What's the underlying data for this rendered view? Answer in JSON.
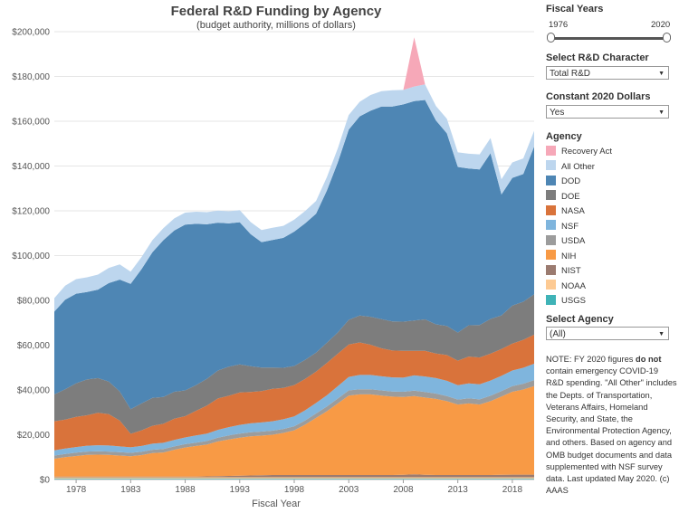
{
  "chart_data": {
    "type": "area",
    "stacked": true,
    "title": "Federal R&D Funding by Agency",
    "subtitle": "(budget authority, millions of dollars)",
    "xlabel": "Fiscal Year",
    "ylabel": "",
    "xlim": [
      1976,
      2020
    ],
    "ylim": [
      0,
      200000
    ],
    "y_ticks": [
      "$0",
      "$20,000",
      "$40,000",
      "$60,000",
      "$80,000",
      "$100,000",
      "$120,000",
      "$140,000",
      "$160,000",
      "$180,000",
      "$200,000"
    ],
    "x_ticks": [
      "1978",
      "1983",
      "1988",
      "1993",
      "1998",
      "2003",
      "2008",
      "2013",
      "2018"
    ],
    "grid": true,
    "years": [
      1976,
      1977,
      1978,
      1979,
      1980,
      1981,
      1982,
      1983,
      1984,
      1985,
      1986,
      1987,
      1988,
      1989,
      1990,
      1991,
      1992,
      1993,
      1994,
      1995,
      1996,
      1997,
      1998,
      1999,
      2000,
      2001,
      2002,
      2003,
      2004,
      2005,
      2006,
      2007,
      2008,
      2009,
      2010,
      2011,
      2012,
      2013,
      2014,
      2015,
      2016,
      2017,
      2018,
      2019,
      2020
    ],
    "series": [
      {
        "name": "USGS",
        "color": "#3fb3b7",
        "values": [
          500,
          500,
          500,
          500,
          500,
          500,
          500,
          500,
          500,
          500,
          500,
          500,
          500,
          500,
          500,
          500,
          500,
          500,
          500,
          500,
          500,
          500,
          500,
          500,
          500,
          500,
          500,
          500,
          500,
          500,
          500,
          500,
          500,
          500,
          500,
          500,
          500,
          500,
          500,
          500,
          500,
          500,
          500,
          500,
          500
        ]
      },
      {
        "name": "NOAA",
        "color": "#fdca93",
        "values": [
          500,
          500,
          500,
          500,
          500,
          500,
          500,
          500,
          500,
          500,
          500,
          500,
          500,
          500,
          500,
          500,
          500,
          500,
          500,
          500,
          500,
          500,
          500,
          500,
          500,
          500,
          500,
          500,
          500,
          500,
          500,
          500,
          500,
          500,
          500,
          500,
          500,
          500,
          500,
          500,
          500,
          500,
          500,
          500,
          500
        ]
      },
      {
        "name": "NIST",
        "color": "#9b7b70",
        "values": [
          300,
          300,
          300,
          300,
          300,
          300,
          300,
          300,
          300,
          300,
          300,
          300,
          300,
          300,
          400,
          500,
          600,
          700,
          800,
          900,
          1000,
          1000,
          1000,
          1000,
          1000,
          1000,
          1000,
          1000,
          1000,
          1000,
          1000,
          1000,
          1100,
          1300,
          1100,
          1000,
          1000,
          1000,
          1000,
          1000,
          1000,
          1100,
          1200,
          1200,
          1200
        ]
      },
      {
        "name": "NIH",
        "color": "#f89a45",
        "values": [
          8000,
          8700,
          9200,
          9700,
          9800,
          9700,
          9400,
          9100,
          9600,
          10500,
          10800,
          12000,
          13000,
          13700,
          14200,
          15500,
          16300,
          17000,
          17500,
          17700,
          18000,
          18800,
          20000,
          22500,
          25500,
          28500,
          32000,
          35500,
          36000,
          36000,
          35500,
          35000,
          34800,
          35000,
          34500,
          34000,
          33000,
          31500,
          32000,
          31500,
          33000,
          35000,
          37000,
          38000,
          39500
        ]
      },
      {
        "name": "USDA",
        "color": "#9c9c9c",
        "values": [
          1400,
          1400,
          1500,
          1500,
          1500,
          1500,
          1500,
          1500,
          1500,
          1500,
          1500,
          1500,
          1500,
          1500,
          1600,
          1700,
          1800,
          1800,
          1800,
          1800,
          1800,
          1800,
          1800,
          1900,
          2000,
          2100,
          2200,
          2300,
          2300,
          2300,
          2300,
          2300,
          2300,
          2400,
          2500,
          2400,
          2300,
          2200,
          2300,
          2300,
          2400,
          2400,
          2500,
          2600,
          2700
        ]
      },
      {
        "name": "NSF",
        "color": "#7fb5dd",
        "values": [
          2300,
          2400,
          2500,
          2600,
          2700,
          2700,
          2600,
          2500,
          2600,
          2700,
          2800,
          2900,
          3000,
          3200,
          3300,
          3500,
          3700,
          3900,
          4000,
          4100,
          4200,
          4300,
          4400,
          4500,
          4700,
          5000,
          5500,
          6000,
          6400,
          6400,
          6300,
          6300,
          6300,
          6800,
          6900,
          6900,
          6800,
          6400,
          6600,
          6700,
          6800,
          6800,
          7000,
          7100,
          7300
        ]
      },
      {
        "name": "NASA",
        "color": "#d9733b",
        "values": [
          13000,
          13000,
          13500,
          13600,
          14500,
          14000,
          11500,
          6000,
          7000,
          8000,
          8500,
          9500,
          9500,
          11000,
          12500,
          14000,
          14000,
          14500,
          14000,
          14000,
          14500,
          14000,
          14000,
          14000,
          14000,
          14500,
          14500,
          14500,
          14500,
          13500,
          12500,
          12000,
          12000,
          11000,
          11500,
          11000,
          11500,
          11000,
          12000,
          12000,
          12000,
          12000,
          12000,
          12500,
          13000
        ]
      },
      {
        "name": "DOE",
        "color": "#7d7d7d",
        "values": [
          12000,
          13500,
          15000,
          16000,
          15500,
          14500,
          13000,
          11000,
          12000,
          12500,
          12000,
          12000,
          11500,
          11500,
          12000,
          12500,
          13000,
          12500,
          11500,
          10500,
          9500,
          9000,
          8500,
          8500,
          8500,
          9000,
          9500,
          11000,
          12000,
          12500,
          13000,
          13000,
          13000,
          13500,
          14000,
          13000,
          13000,
          12500,
          14000,
          14500,
          15500,
          15000,
          17000,
          17000,
          18000
        ]
      },
      {
        "name": "DOD",
        "color": "#4e86b4",
        "values": [
          37000,
          40000,
          40000,
          39000,
          39500,
          44000,
          50000,
          56000,
          60000,
          65000,
          70000,
          72000,
          74000,
          72000,
          69000,
          66000,
          64000,
          63500,
          59000,
          56000,
          57000,
          58000,
          60000,
          61000,
          62000,
          68000,
          76000,
          85000,
          89000,
          92000,
          95000,
          96000,
          97000,
          98000,
          98000,
          91000,
          86000,
          74000,
          70000,
          69500,
          74000,
          54000,
          57000,
          57000,
          66000
        ]
      },
      {
        "name": "All Other",
        "color": "#bdd6ee",
        "values": [
          6000,
          6300,
          6500,
          6600,
          6700,
          6800,
          6800,
          5400,
          5400,
          5400,
          5400,
          5400,
          5400,
          5400,
          5400,
          5400,
          5400,
          5400,
          5400,
          5400,
          5400,
          5400,
          5400,
          5500,
          5700,
          6000,
          6300,
          6500,
          6500,
          7000,
          6800,
          7200,
          6500,
          6500,
          7000,
          6500,
          6500,
          6500,
          6600,
          6700,
          6800,
          6800,
          6900,
          7000,
          7000
        ]
      },
      {
        "name": "Recovery Act",
        "color": "#f6a8b8",
        "values": [
          0,
          0,
          0,
          0,
          0,
          0,
          0,
          0,
          0,
          0,
          0,
          0,
          0,
          0,
          0,
          0,
          0,
          0,
          0,
          0,
          0,
          0,
          0,
          0,
          0,
          0,
          0,
          0,
          0,
          0,
          0,
          0,
          0,
          22000,
          0,
          0,
          0,
          0,
          0,
          0,
          0,
          0,
          0,
          0,
          0
        ]
      }
    ]
  },
  "legend_order": [
    "Recovery Act",
    "All Other",
    "DOD",
    "DOE",
    "NASA",
    "NSF",
    "USDA",
    "NIH",
    "NIST",
    "NOAA",
    "USGS"
  ],
  "panel": {
    "fiscal_years_label": "Fiscal Years",
    "range_start": "1976",
    "range_end": "2020",
    "rd_character_label": "Select R&D Character",
    "rd_character_value": "Total R&D",
    "constant_dollars_label": "Constant 2020 Dollars",
    "constant_dollars_value": "Yes",
    "agency_label": "Agency",
    "select_agency_label": "Select Agency",
    "select_agency_value": "(All)"
  },
  "note": {
    "part1": "NOTE: FY 2020 figures ",
    "bold": "do not",
    "part2": " contain emergency COVID-19 R&D spending. \"All Other\" includes the Depts. of Transportation, Veterans Affairs, Homeland Security, and State, the Environmental Protection Agency, and others. Based on agency and OMB budget documents and data supplemented with NSF survey data. Last updated May 2020. (c) AAAS"
  }
}
